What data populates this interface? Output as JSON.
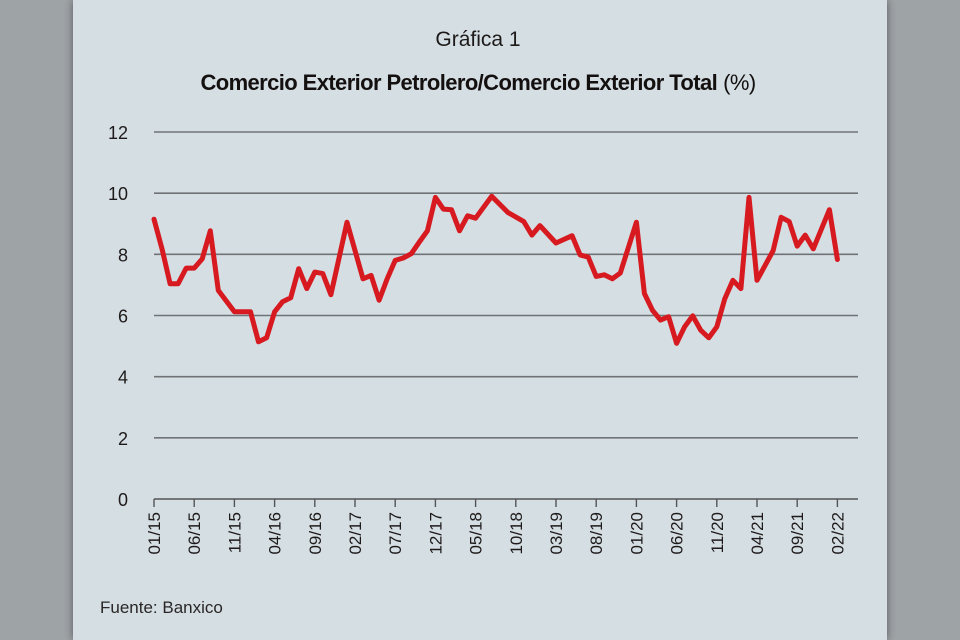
{
  "chart_data": {
    "type": "line",
    "label": "Gráfica 1",
    "title": "Comercio Exterior Petrolero/Comercio Exterior Total",
    "title_unit": "(%)",
    "source": "Fuente: Banxico",
    "ylim": [
      0,
      12
    ],
    "yticks": [
      "0",
      "2",
      "4",
      "6",
      "8",
      "10",
      "12"
    ],
    "xticks": [
      "01/15",
      "06/15",
      "11/15",
      "04/16",
      "09/16",
      "02/17",
      "07/17",
      "12/17",
      "05/18",
      "10/18",
      "03/19",
      "08/19",
      "01/20",
      "06/20",
      "11/20",
      "04/21",
      "09/21",
      "02/22"
    ],
    "grid": true,
    "line_color": "#d71920",
    "series": [
      {
        "points": [
          [
            "01/15",
            9.15
          ],
          [
            "02/15",
            8.18
          ],
          [
            "03/15",
            7.04
          ],
          [
            "04/15",
            7.04
          ],
          [
            "05/15",
            7.55
          ],
          [
            "06/15",
            7.55
          ],
          [
            "07/15",
            7.85
          ],
          [
            "08/15",
            8.77
          ],
          [
            "09/15",
            6.82
          ],
          [
            "11/15",
            6.12
          ],
          [
            "01/16",
            6.12
          ],
          [
            "02/16",
            5.14
          ],
          [
            "03/16",
            5.27
          ],
          [
            "04/16",
            6.12
          ],
          [
            "05/16",
            6.45
          ],
          [
            "06/16",
            6.58
          ],
          [
            "07/16",
            7.53
          ],
          [
            "08/16",
            6.88
          ],
          [
            "09/16",
            7.42
          ],
          [
            "10/16",
            7.37
          ],
          [
            "11/16",
            6.68
          ],
          [
            "01/17",
            9.05
          ],
          [
            "03/17",
            7.2
          ],
          [
            "04/17",
            7.31
          ],
          [
            "05/17",
            6.5
          ],
          [
            "06/17",
            7.2
          ],
          [
            "07/17",
            7.8
          ],
          [
            "08/17",
            7.88
          ],
          [
            "09/17",
            8.02
          ],
          [
            "10/17",
            8.4
          ],
          [
            "11/17",
            8.77
          ],
          [
            "12/17",
            9.86
          ],
          [
            "01/18",
            9.48
          ],
          [
            "02/18",
            9.46
          ],
          [
            "03/18",
            8.77
          ],
          [
            "04/18",
            9.26
          ],
          [
            "05/18",
            9.18
          ],
          [
            "07/18",
            9.9
          ],
          [
            "09/18",
            9.37
          ],
          [
            "11/18",
            9.07
          ],
          [
            "12/18",
            8.63
          ],
          [
            "01/19",
            8.94
          ],
          [
            "03/19",
            8.37
          ],
          [
            "05/19",
            8.61
          ],
          [
            "06/19",
            7.98
          ],
          [
            "07/19",
            7.91
          ],
          [
            "08/19",
            7.28
          ],
          [
            "09/19",
            7.33
          ],
          [
            "10/19",
            7.2
          ],
          [
            "11/19",
            7.39
          ],
          [
            "01/20",
            9.05
          ],
          [
            "02/20",
            6.72
          ],
          [
            "03/20",
            6.17
          ],
          [
            "04/20",
            5.85
          ],
          [
            "05/20",
            5.96
          ],
          [
            "06/20",
            5.09
          ],
          [
            "07/20",
            5.63
          ],
          [
            "08/20",
            5.99
          ],
          [
            "09/20",
            5.52
          ],
          [
            "10/20",
            5.27
          ],
          [
            "11/20",
            5.63
          ],
          [
            "12/20",
            6.55
          ],
          [
            "01/21",
            7.15
          ],
          [
            "02/21",
            6.88
          ],
          [
            "03/21",
            9.86
          ],
          [
            "04/21",
            7.15
          ],
          [
            "06/21",
            8.12
          ],
          [
            "07/21",
            9.21
          ],
          [
            "08/21",
            9.07
          ],
          [
            "09/21",
            8.27
          ],
          [
            "10/21",
            8.63
          ],
          [
            "11/21",
            8.18
          ],
          [
            "01/22",
            9.46
          ],
          [
            "02/22",
            7.83
          ]
        ]
      }
    ]
  }
}
